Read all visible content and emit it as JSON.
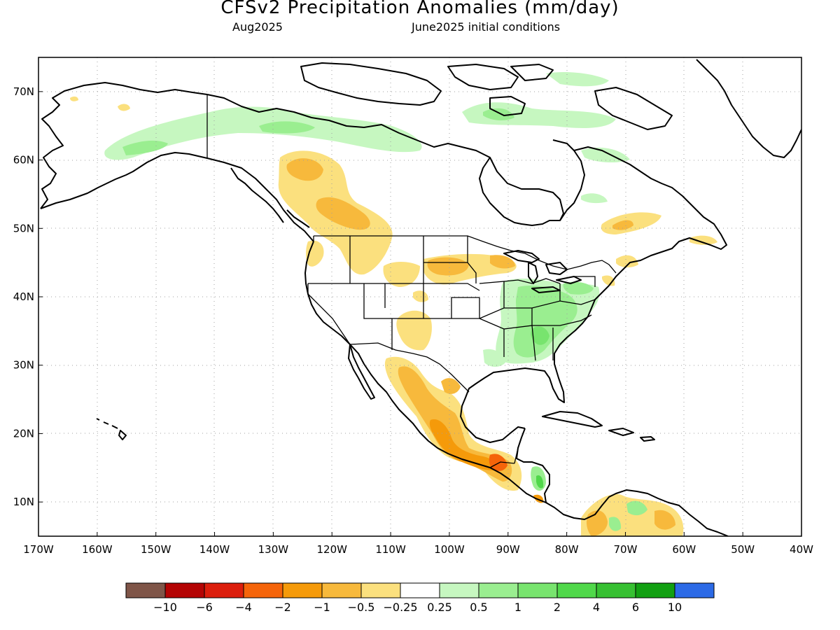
{
  "title": "CFSv2 Precipitation Anomalies (mm/day)",
  "subtitle_left": "Aug2025",
  "subtitle_right": "June2025 initial conditions",
  "map": {
    "lon_range": [
      -170,
      -40
    ],
    "lat_range": [
      5,
      75
    ],
    "grid": "dotted",
    "lat_ticks": [
      "10N",
      "20N",
      "30N",
      "40N",
      "50N",
      "60N",
      "70N"
    ],
    "lon_ticks": [
      "170W",
      "160W",
      "150W",
      "140W",
      "130W",
      "120W",
      "110W",
      "100W",
      "90W",
      "80W",
      "70W",
      "60W",
      "50W",
      "40W"
    ]
  },
  "colorbar": {
    "colors": [
      "#7f5548",
      "#b40404",
      "#dc1e0c",
      "#f5640a",
      "#f59a0a",
      "#f7b93c",
      "#fbe07e",
      "#ffffff",
      "#c6f7c0",
      "#9aee90",
      "#78e46e",
      "#50d84a",
      "#37c032",
      "#12a012",
      "#2c6ae6"
    ],
    "labels": [
      "−10",
      "−6",
      "−4",
      "−2",
      "−1",
      "−0.5",
      "−0.25",
      "0.25",
      "0.5",
      "1",
      "2",
      "4",
      "6",
      "10"
    ]
  },
  "anomaly_regions": [
    {
      "name": "mexico-dry",
      "level": -1,
      "color": "#f7b93c"
    },
    {
      "name": "southeast-us-wet",
      "level": 0.5,
      "color": "#9aee90"
    },
    {
      "name": "northern-plains-dry",
      "level": -1,
      "color": "#f7b93c"
    },
    {
      "name": "western-canada-dry",
      "level": -1,
      "color": "#f7b93c"
    },
    {
      "name": "arctic-canada-wet",
      "level": 0.5,
      "color": "#9aee90"
    }
  ]
}
